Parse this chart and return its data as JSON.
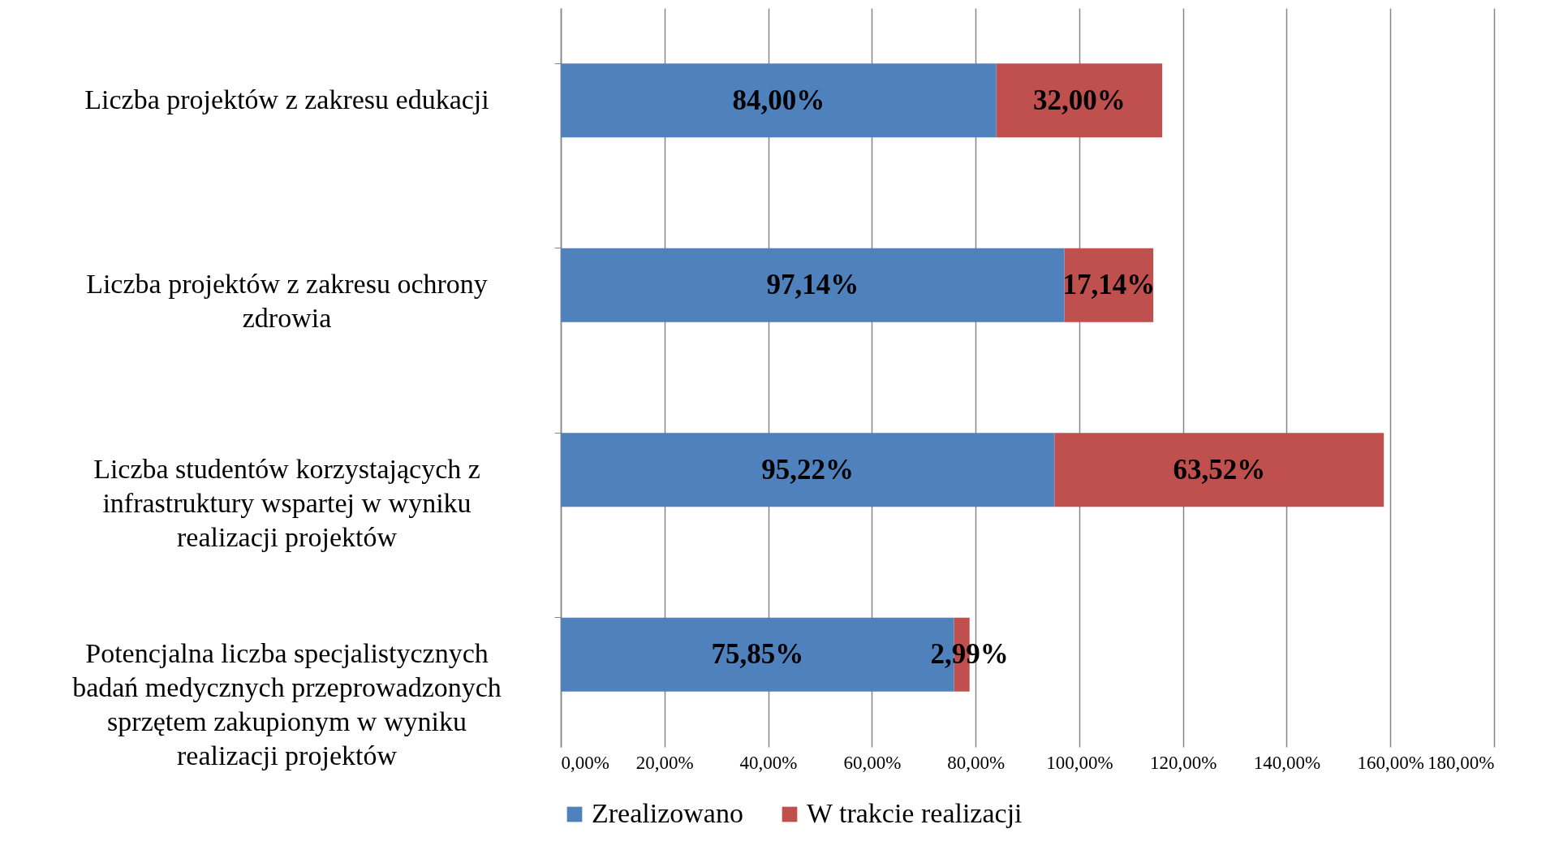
{
  "chart_data": {
    "type": "bar",
    "orientation": "horizontal",
    "stacked": true,
    "categories": [
      "Liczba projektów z zakresu edukacji",
      "Liczba projektów z zakresu ochrony zdrowia",
      "Liczba studentów korzystających z infrastruktury wspartej w wyniku realizacji projektów",
      "Potencjalna liczba specjalistycznych badań medycznych przeprowadzonych sprzętem zakupionym w wyniku realizacji projektów"
    ],
    "series": [
      {
        "name": "Zrealizowano",
        "color": "#4f81bd",
        "values": [
          84.0,
          97.14,
          95.22,
          75.85
        ],
        "value_labels": [
          "84,00%",
          "97,14%",
          "95,22%",
          "75,85%"
        ]
      },
      {
        "name": "W trakcie realizacji",
        "color": "#c0504d",
        "values": [
          32.0,
          17.14,
          63.52,
          2.99
        ],
        "value_labels": [
          "32,00%",
          "17,14%",
          "63,52%",
          "2,99%"
        ]
      }
    ],
    "xlim": [
      0,
      180
    ],
    "xticks": [
      {
        "value": 0,
        "label": "0,00%"
      },
      {
        "value": 20,
        "label": "20,00%"
      },
      {
        "value": 40,
        "label": "40,00%"
      },
      {
        "value": 60,
        "label": "60,00%"
      },
      {
        "value": 80,
        "label": "80,00%"
      },
      {
        "value": 100,
        "label": "100,00%"
      },
      {
        "value": 120,
        "label": "120,00%"
      },
      {
        "value": 140,
        "label": "140,00%"
      },
      {
        "value": 160,
        "label": "160,00%"
      },
      {
        "value": 180,
        "label": "180,00%"
      }
    ],
    "grid": "x",
    "legend": "bottom"
  }
}
